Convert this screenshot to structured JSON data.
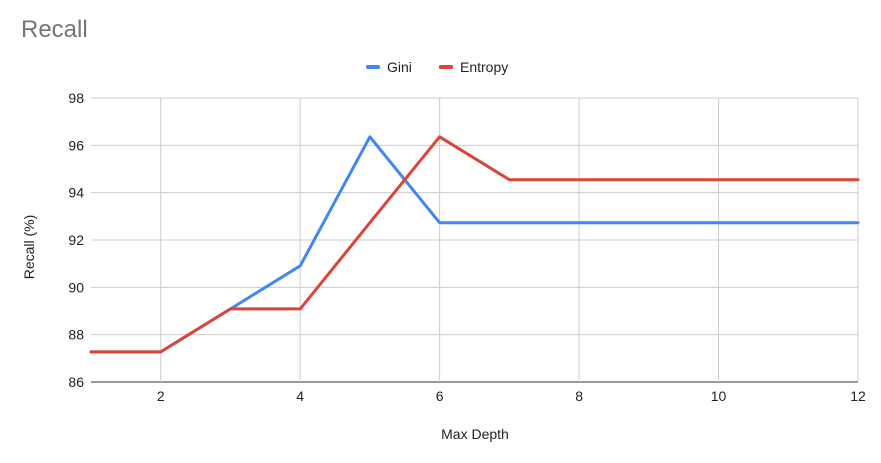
{
  "chart_data": {
    "type": "line",
    "title": "Recall",
    "xlabel": "Max Depth",
    "ylabel": "Recall (%)",
    "xlim": [
      1,
      12
    ],
    "ylim": [
      86,
      98
    ],
    "x_ticks": [
      2,
      4,
      6,
      8,
      10,
      12
    ],
    "y_ticks": [
      86,
      88,
      90,
      92,
      94,
      96,
      98
    ],
    "grid": true,
    "legend_position": "top",
    "x": [
      1,
      2,
      3,
      4,
      5,
      6,
      7,
      8,
      9,
      10,
      11,
      12
    ],
    "series": [
      {
        "name": "Gini",
        "color": "#4285f4",
        "values": [
          87.27,
          87.27,
          89.09,
          90.91,
          96.36,
          92.73,
          92.73,
          92.73,
          92.73,
          92.73,
          92.73,
          92.73
        ]
      },
      {
        "name": "Entropy",
        "color": "#db4437",
        "values": [
          87.27,
          87.27,
          89.09,
          89.09,
          92.73,
          96.36,
          94.55,
          94.55,
          94.55,
          94.55,
          94.55,
          94.55
        ]
      }
    ]
  }
}
